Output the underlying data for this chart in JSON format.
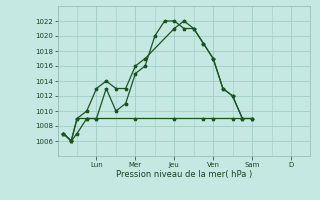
{
  "background_color": "#c5e8e2",
  "grid_color": "#a0ccc5",
  "line_color": "#1a5520",
  "xlabel": "Pression niveau de la mer( hPa )",
  "ylim": [
    1004,
    1024
  ],
  "yticks": [
    1006,
    1008,
    1010,
    1012,
    1014,
    1016,
    1018,
    1020,
    1022
  ],
  "day_labels": [
    "Lun",
    "Mer",
    "Jeu",
    "Ven",
    "Sam",
    "D"
  ],
  "day_positions": [
    2,
    4,
    6,
    8,
    10,
    12
  ],
  "xlim": [
    0,
    13
  ],
  "line1_x": [
    0.3,
    0.7,
    1.0,
    1.5,
    2.0,
    2.5,
    3.0,
    3.5,
    4.0,
    4.5,
    5.0,
    5.5,
    6.0,
    6.5,
    7.0,
    7.5,
    8.0,
    8.5,
    9.0,
    9.5
  ],
  "line1_y": [
    1007,
    1006,
    1007,
    1009,
    1009,
    1013,
    1010,
    1011,
    1015,
    1016,
    1020,
    1022,
    1022,
    1021,
    1021,
    1019,
    1017,
    1013,
    1012,
    1009
  ],
  "line2_x": [
    0.3,
    0.7,
    1.0,
    1.5,
    2.0,
    2.5,
    3.0,
    3.5,
    4.0,
    4.5,
    6.0,
    6.5,
    7.0,
    7.5,
    8.0,
    8.5,
    9.0,
    9.5,
    10.0
  ],
  "line2_y": [
    1007,
    1006,
    1009,
    1010,
    1013,
    1014,
    1013,
    1013,
    1016,
    1017,
    1021,
    1022,
    1021,
    1019,
    1017,
    1013,
    1012,
    1009,
    1009
  ],
  "line3_x": [
    0.3,
    0.7,
    1.0,
    1.5,
    2.0,
    4.0,
    6.0,
    7.5,
    8.0,
    9.0,
    10.0
  ],
  "line3_y": [
    1007,
    1006,
    1009,
    1009,
    1009,
    1009,
    1009,
    1009,
    1009,
    1009,
    1009
  ]
}
